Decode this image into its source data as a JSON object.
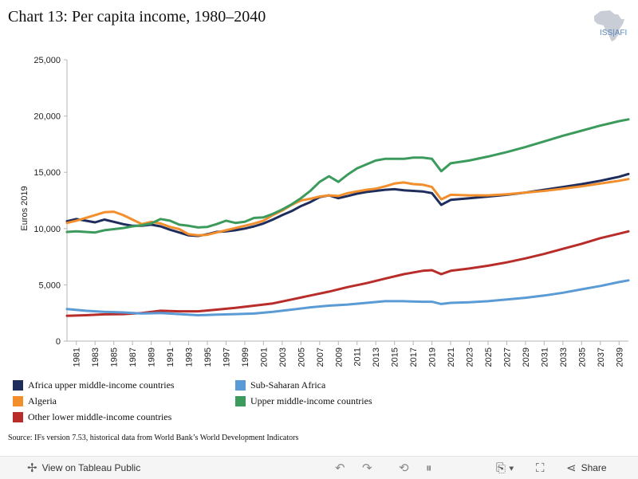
{
  "header": {
    "title": "Chart 13: Per capita income, 1980–2040",
    "logo_text": "ISS|AFI"
  },
  "source": "Source: IFs version 7.53, historical data from World Bank’s World Development Indicators",
  "toolbar": {
    "view_label": "View on Tableau Public",
    "share_label": "Share"
  },
  "colors": {
    "africa_umic": "#1f2d5c",
    "algeria": "#f28e2b",
    "other_lmic": "#b82d2a",
    "ssa": "#5b9bd5",
    "umic": "#3c9b5c"
  },
  "chart_data": {
    "type": "line",
    "xlabel": "",
    "ylabel": "Euros 2019",
    "ylim": [
      0,
      25000
    ],
    "yticks": [
      0,
      5000,
      10000,
      15000,
      20000,
      25000
    ],
    "ytick_labels": [
      "0",
      "5,000",
      "10,000",
      "15,000",
      "20,000",
      "25,000"
    ],
    "x_start": 1980,
    "x_end": 2040,
    "xticks": [
      1981,
      1983,
      1985,
      1987,
      1989,
      1991,
      1993,
      1995,
      1997,
      1999,
      2001,
      2003,
      2005,
      2007,
      2009,
      2011,
      2013,
      2015,
      2017,
      2019,
      2021,
      2023,
      2025,
      2027,
      2029,
      2031,
      2033,
      2035,
      2037,
      2039
    ],
    "grid": false,
    "legend_position": "bottom",
    "series": [
      {
        "name": "Africa upper middle-income countries",
        "color_key": "africa_umic",
        "points": [
          [
            1980,
            10650
          ],
          [
            1981,
            10850
          ],
          [
            1982,
            10700
          ],
          [
            1983,
            10550
          ],
          [
            1984,
            10800
          ],
          [
            1985,
            10600
          ],
          [
            1986,
            10400
          ],
          [
            1987,
            10250
          ],
          [
            1988,
            10250
          ],
          [
            1989,
            10350
          ],
          [
            1990,
            10200
          ],
          [
            1991,
            9900
          ],
          [
            1992,
            9650
          ],
          [
            1993,
            9400
          ],
          [
            1994,
            9350
          ],
          [
            1995,
            9500
          ],
          [
            1996,
            9700
          ],
          [
            1997,
            9750
          ],
          [
            1998,
            9850
          ],
          [
            1999,
            10000
          ],
          [
            2000,
            10200
          ],
          [
            2001,
            10450
          ],
          [
            2002,
            10800
          ],
          [
            2003,
            11200
          ],
          [
            2004,
            11550
          ],
          [
            2005,
            12000
          ],
          [
            2006,
            12350
          ],
          [
            2007,
            12800
          ],
          [
            2008,
            12950
          ],
          [
            2009,
            12700
          ],
          [
            2010,
            12900
          ],
          [
            2011,
            13100
          ],
          [
            2012,
            13250
          ],
          [
            2013,
            13350
          ],
          [
            2014,
            13450
          ],
          [
            2015,
            13500
          ],
          [
            2016,
            13400
          ],
          [
            2017,
            13350
          ],
          [
            2018,
            13300
          ],
          [
            2019,
            13150
          ],
          [
            2020,
            12100
          ],
          [
            2021,
            12550
          ],
          [
            2023,
            12700
          ],
          [
            2025,
            12850
          ],
          [
            2027,
            13000
          ],
          [
            2029,
            13200
          ],
          [
            2031,
            13450
          ],
          [
            2033,
            13700
          ],
          [
            2035,
            13950
          ],
          [
            2037,
            14250
          ],
          [
            2039,
            14600
          ],
          [
            2040,
            14850
          ]
        ]
      },
      {
        "name": "Algeria",
        "color_key": "algeria",
        "points": [
          [
            1980,
            10500
          ],
          [
            1981,
            10700
          ],
          [
            1982,
            10950
          ],
          [
            1983,
            11200
          ],
          [
            1984,
            11450
          ],
          [
            1985,
            11500
          ],
          [
            1986,
            11200
          ],
          [
            1987,
            10800
          ],
          [
            1988,
            10400
          ],
          [
            1989,
            10600
          ],
          [
            1990,
            10450
          ],
          [
            1991,
            10150
          ],
          [
            1992,
            9950
          ],
          [
            1993,
            9500
          ],
          [
            1994,
            9400
          ],
          [
            1995,
            9450
          ],
          [
            1996,
            9650
          ],
          [
            1997,
            9850
          ],
          [
            1998,
            10050
          ],
          [
            1999,
            10250
          ],
          [
            2000,
            10450
          ],
          [
            2001,
            10700
          ],
          [
            2002,
            11200
          ],
          [
            2003,
            11600
          ],
          [
            2004,
            12100
          ],
          [
            2005,
            12500
          ],
          [
            2006,
            12650
          ],
          [
            2007,
            12850
          ],
          [
            2008,
            12950
          ],
          [
            2009,
            12900
          ],
          [
            2010,
            13150
          ],
          [
            2011,
            13300
          ],
          [
            2012,
            13450
          ],
          [
            2013,
            13550
          ],
          [
            2014,
            13750
          ],
          [
            2015,
            14000
          ],
          [
            2016,
            14100
          ],
          [
            2017,
            13950
          ],
          [
            2018,
            13900
          ],
          [
            2019,
            13700
          ],
          [
            2020,
            12600
          ],
          [
            2021,
            13000
          ],
          [
            2023,
            12950
          ],
          [
            2025,
            12950
          ],
          [
            2027,
            13050
          ],
          [
            2029,
            13200
          ],
          [
            2031,
            13350
          ],
          [
            2033,
            13550
          ],
          [
            2035,
            13750
          ],
          [
            2037,
            14000
          ],
          [
            2039,
            14250
          ],
          [
            2040,
            14400
          ]
        ]
      },
      {
        "name": "Other lower middle-income countries",
        "color_key": "other_lmic",
        "points": [
          [
            1980,
            2250
          ],
          [
            1982,
            2300
          ],
          [
            1984,
            2380
          ],
          [
            1986,
            2400
          ],
          [
            1988,
            2500
          ],
          [
            1990,
            2700
          ],
          [
            1992,
            2650
          ],
          [
            1994,
            2650
          ],
          [
            1996,
            2800
          ],
          [
            1998,
            2950
          ],
          [
            2000,
            3150
          ],
          [
            2002,
            3350
          ],
          [
            2004,
            3700
          ],
          [
            2006,
            4050
          ],
          [
            2008,
            4400
          ],
          [
            2010,
            4800
          ],
          [
            2012,
            5150
          ],
          [
            2014,
            5550
          ],
          [
            2016,
            5950
          ],
          [
            2018,
            6250
          ],
          [
            2019,
            6300
          ],
          [
            2020,
            5950
          ],
          [
            2021,
            6250
          ],
          [
            2023,
            6450
          ],
          [
            2025,
            6700
          ],
          [
            2027,
            7000
          ],
          [
            2029,
            7350
          ],
          [
            2031,
            7750
          ],
          [
            2033,
            8200
          ],
          [
            2035,
            8650
          ],
          [
            2037,
            9150
          ],
          [
            2039,
            9550
          ],
          [
            2040,
            9750
          ]
        ]
      },
      {
        "name": "Sub-Saharan Africa",
        "color_key": "ssa",
        "points": [
          [
            1980,
            2850
          ],
          [
            1982,
            2700
          ],
          [
            1984,
            2600
          ],
          [
            1986,
            2550
          ],
          [
            1988,
            2450
          ],
          [
            1990,
            2500
          ],
          [
            1992,
            2400
          ],
          [
            1994,
            2300
          ],
          [
            1996,
            2350
          ],
          [
            1998,
            2400
          ],
          [
            2000,
            2450
          ],
          [
            2002,
            2600
          ],
          [
            2004,
            2800
          ],
          [
            2006,
            3000
          ],
          [
            2008,
            3150
          ],
          [
            2010,
            3250
          ],
          [
            2012,
            3400
          ],
          [
            2014,
            3550
          ],
          [
            2016,
            3550
          ],
          [
            2018,
            3500
          ],
          [
            2019,
            3500
          ],
          [
            2020,
            3300
          ],
          [
            2021,
            3400
          ],
          [
            2023,
            3450
          ],
          [
            2025,
            3550
          ],
          [
            2027,
            3700
          ],
          [
            2029,
            3850
          ],
          [
            2031,
            4050
          ],
          [
            2033,
            4300
          ],
          [
            2035,
            4600
          ],
          [
            2037,
            4900
          ],
          [
            2039,
            5250
          ],
          [
            2040,
            5400
          ]
        ]
      },
      {
        "name": "Upper middle-income countries",
        "color_key": "umic",
        "points": [
          [
            1980,
            9700
          ],
          [
            1981,
            9750
          ],
          [
            1982,
            9700
          ],
          [
            1983,
            9650
          ],
          [
            1984,
            9850
          ],
          [
            1985,
            9950
          ],
          [
            1986,
            10050
          ],
          [
            1987,
            10200
          ],
          [
            1988,
            10300
          ],
          [
            1989,
            10450
          ],
          [
            1990,
            10850
          ],
          [
            1991,
            10700
          ],
          [
            1992,
            10350
          ],
          [
            1993,
            10250
          ],
          [
            1994,
            10100
          ],
          [
            1995,
            10150
          ],
          [
            1996,
            10400
          ],
          [
            1997,
            10700
          ],
          [
            1998,
            10500
          ],
          [
            1999,
            10600
          ],
          [
            2000,
            10950
          ],
          [
            2001,
            11000
          ],
          [
            2002,
            11300
          ],
          [
            2003,
            11700
          ],
          [
            2004,
            12150
          ],
          [
            2005,
            12700
          ],
          [
            2006,
            13350
          ],
          [
            2007,
            14150
          ],
          [
            2008,
            14650
          ],
          [
            2009,
            14150
          ],
          [
            2010,
            14800
          ],
          [
            2011,
            15350
          ],
          [
            2012,
            15700
          ],
          [
            2013,
            16050
          ],
          [
            2014,
            16200
          ],
          [
            2015,
            16200
          ],
          [
            2016,
            16200
          ],
          [
            2017,
            16300
          ],
          [
            2018,
            16300
          ],
          [
            2019,
            16200
          ],
          [
            2020,
            15100
          ],
          [
            2021,
            15800
          ],
          [
            2023,
            16050
          ],
          [
            2025,
            16400
          ],
          [
            2027,
            16800
          ],
          [
            2029,
            17250
          ],
          [
            2031,
            17750
          ],
          [
            2033,
            18250
          ],
          [
            2035,
            18700
          ],
          [
            2037,
            19150
          ],
          [
            2039,
            19550
          ],
          [
            2040,
            19700
          ]
        ]
      }
    ]
  }
}
